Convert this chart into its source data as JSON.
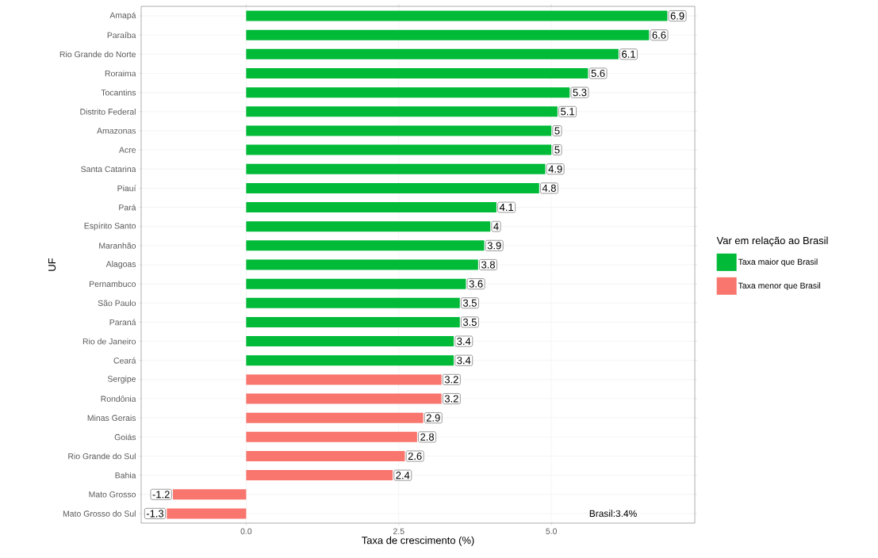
{
  "chart_data": {
    "type": "bar",
    "orientation": "horizontal",
    "xlabel": "Taxa de crescimento (%)",
    "ylabel": "UF",
    "legend_title": "Var em relação ao Brasil",
    "categories": [
      "Amapá",
      "Paraíba",
      "Rio Grande do Norte",
      "Roraima",
      "Tocantins",
      "Distrito Federal",
      "Amazonas",
      "Acre",
      "Santa Catarina",
      "Piauí",
      "Pará",
      "Espírito Santo",
      "Maranhão",
      "Alagoas",
      "Pernambuco",
      "São Paulo",
      "Paraná",
      "Rio de Janeiro",
      "Ceará",
      "Sergipe",
      "Rondônia",
      "Minas Gerais",
      "Goiás",
      "Rio Grande do Sul",
      "Bahia",
      "Mato Grosso",
      "Mato Grosso do Sul"
    ],
    "series": [
      {
        "name": "Taxa maior que Brasil",
        "color": "#00ba38",
        "values": [
          6.9,
          6.6,
          6.1,
          5.6,
          5.3,
          5.1,
          5,
          5,
          4.9,
          4.8,
          4.1,
          4,
          3.9,
          3.8,
          3.6,
          3.5,
          3.5,
          3.4,
          3.4,
          null,
          null,
          null,
          null,
          null,
          null,
          null,
          null
        ]
      },
      {
        "name": "Taxa menor que Brasil",
        "color": "#f8766d",
        "values": [
          null,
          null,
          null,
          null,
          null,
          null,
          null,
          null,
          null,
          null,
          null,
          null,
          null,
          null,
          null,
          null,
          null,
          null,
          null,
          3.2,
          3.2,
          2.9,
          2.8,
          2.6,
          2.4,
          -1.2,
          -1.3
        ]
      }
    ],
    "xlim": [
      -1.72,
      7.35
    ],
    "xticks": [
      {
        "value": 0,
        "label": "0.0"
      },
      {
        "value": 2.5,
        "label": "2.5"
      },
      {
        "value": 5,
        "label": "5.0"
      }
    ],
    "data_labels": true,
    "grid": true,
    "legend": "right",
    "annotations": [
      "Brasil:3.4%"
    ]
  }
}
